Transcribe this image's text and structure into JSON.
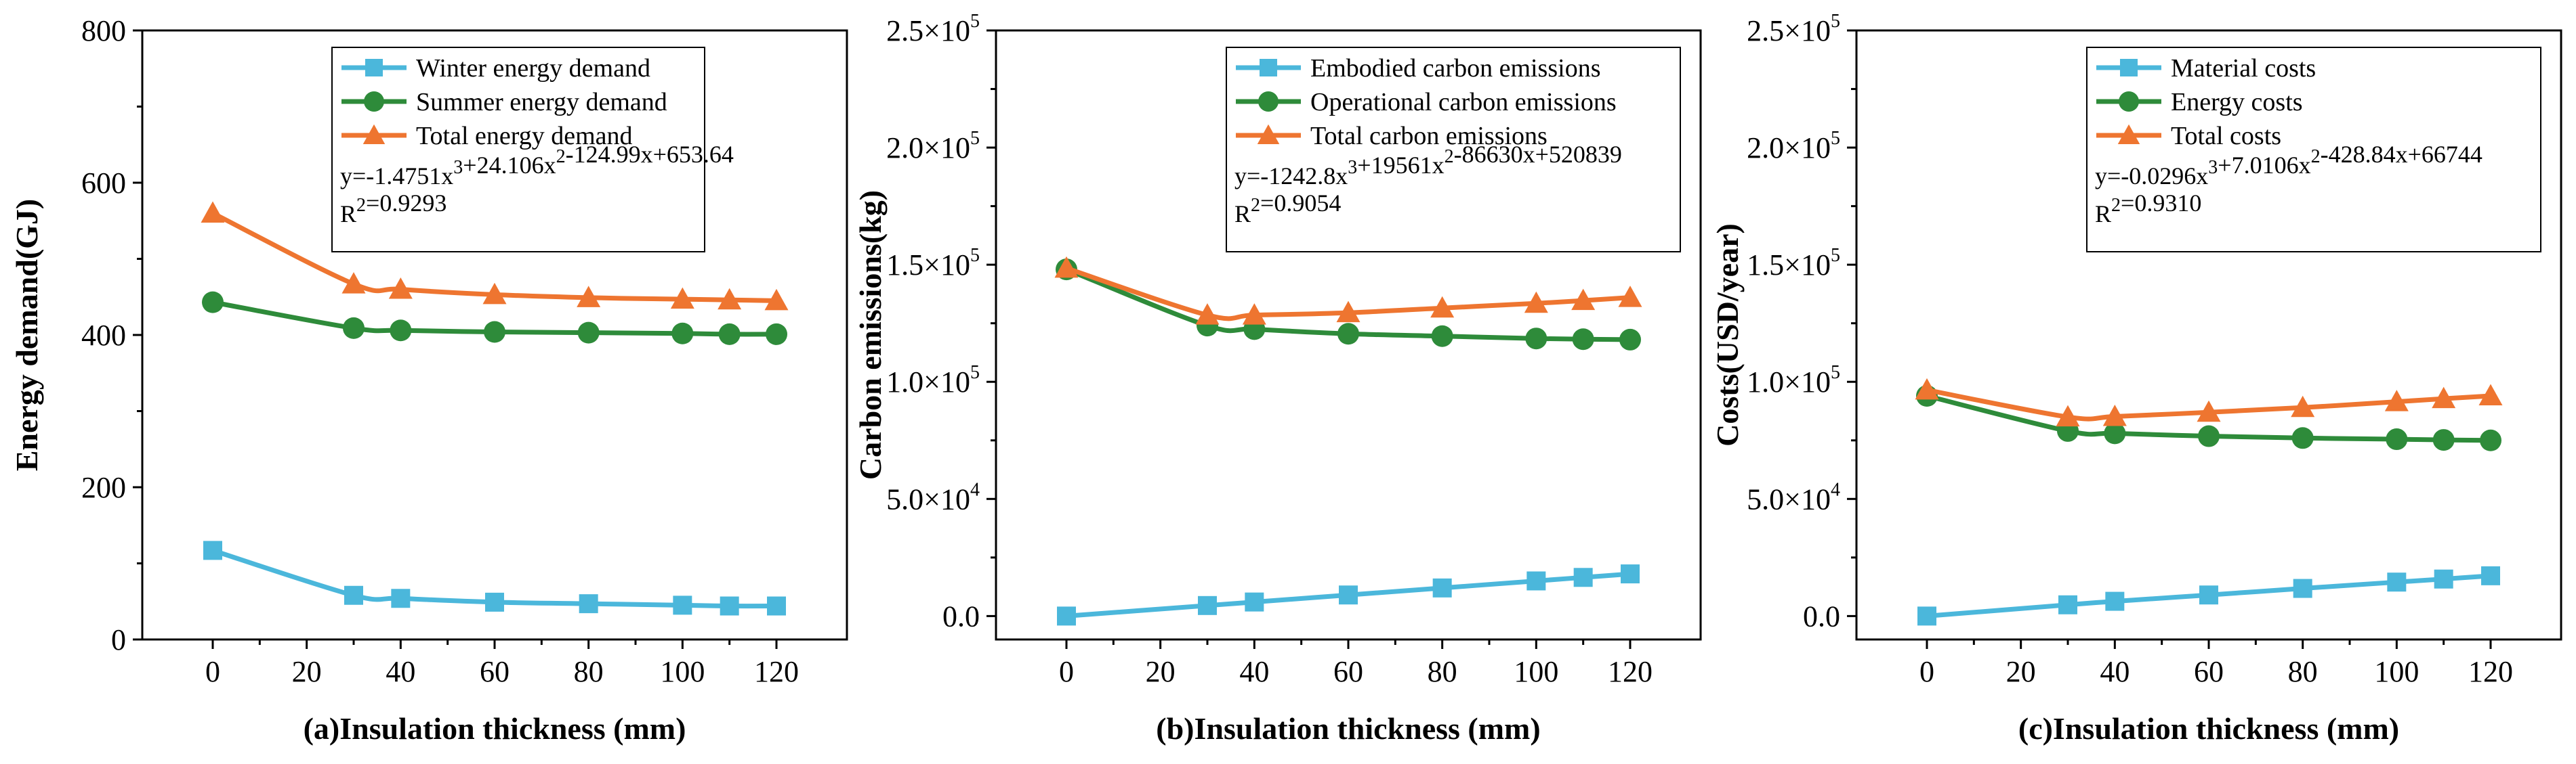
{
  "chart_data": [
    {
      "type": "line",
      "xlabel": "(a)Insulation thickness (mm)",
      "ylabel": "Energy demand(GJ)",
      "x": [
        0,
        30,
        40,
        60,
        80,
        100,
        110,
        120
      ],
      "xlim": [
        -15,
        135
      ],
      "ylim": [
        0,
        800
      ],
      "xticks": [
        0,
        20,
        40,
        60,
        80,
        100,
        120
      ],
      "yticks": [
        0,
        200,
        400,
        600,
        800
      ],
      "ytick_format": "plain",
      "legend_position": "top-right",
      "series": [
        {
          "name": "Winter energy demand",
          "values": [
            117,
            58,
            54,
            49,
            47,
            45,
            44,
            44
          ],
          "color": "#4BB7DB",
          "marker": "square"
        },
        {
          "name": "Summer energy demand",
          "values": [
            443,
            409,
            406,
            404,
            403,
            402,
            401,
            401
          ],
          "color": "#2E8B3A",
          "marker": "circle"
        },
        {
          "name": "Total energy demand",
          "values": [
            560,
            467,
            460,
            453,
            449,
            447,
            446,
            445
          ],
          "color": "#EE7530",
          "marker": "triangle"
        }
      ],
      "equation": "y=-1.4751x³+24.106x²-124.99x+653.64",
      "r2": "R²=0.9293"
    },
    {
      "type": "line",
      "xlabel": "(b)Insulation thickness (mm)",
      "ylabel": "Carbon emissions(kg)",
      "x": [
        0,
        30,
        40,
        60,
        80,
        100,
        110,
        120
      ],
      "xlim": [
        -15,
        135
      ],
      "ylim": [
        -10000,
        250000
      ],
      "xticks": [
        0,
        20,
        40,
        60,
        80,
        100,
        120
      ],
      "yticks": [
        0,
        50000,
        100000,
        150000,
        200000,
        250000
      ],
      "ytick_labels": [
        "0.0",
        "5.0×10^4",
        "1.0×10^5",
        "1.5×10^5",
        "2.0×10^5",
        "2.5×10^5"
      ],
      "legend_position": "top-right",
      "series": [
        {
          "name": "Embodied carbon emissions",
          "values": [
            0,
            4500,
            6000,
            9000,
            12000,
            15000,
            16500,
            18000
          ],
          "color": "#4BB7DB",
          "marker": "square"
        },
        {
          "name": "Operational carbon emissions",
          "values": [
            148000,
            124000,
            122500,
            120500,
            119500,
            118500,
            118200,
            118000
          ],
          "color": "#2E8B3A",
          "marker": "circle"
        },
        {
          "name": "Total carbon emissions",
          "values": [
            148500,
            128500,
            128500,
            129500,
            131500,
            133500,
            134700,
            136000
          ],
          "color": "#EE7530",
          "marker": "triangle"
        }
      ],
      "equation": "y=-1242.8x³+19561x²-86630x+520839",
      "r2": "R²=0.9054"
    },
    {
      "type": "line",
      "xlabel": "(c)Insulation thickness (mm)",
      "ylabel": "Costs(USD/year)",
      "x": [
        0,
        30,
        40,
        60,
        80,
        100,
        110,
        120
      ],
      "xlim": [
        -15,
        135
      ],
      "ylim": [
        -10000,
        250000
      ],
      "xticks": [
        0,
        20,
        40,
        60,
        80,
        100,
        120
      ],
      "yticks": [
        0,
        50000,
        100000,
        150000,
        200000,
        250000
      ],
      "ytick_labels": [
        "0.0",
        "5.0×10^4",
        "1.0×10^5",
        "1.5×10^5",
        "2.0×10^5",
        "2.5×10^5"
      ],
      "legend_position": "top-right",
      "series": [
        {
          "name": "Material costs",
          "values": [
            0,
            4800,
            6300,
            9000,
            11800,
            14500,
            15800,
            17200
          ],
          "color": "#4BB7DB",
          "marker": "square"
        },
        {
          "name": "Energy costs",
          "values": [
            94000,
            79000,
            78000,
            76800,
            76000,
            75500,
            75200,
            75000
          ],
          "color": "#2E8B3A",
          "marker": "circle"
        },
        {
          "name": "Total costs",
          "values": [
            96500,
            85000,
            85200,
            87000,
            89000,
            91500,
            92800,
            94000
          ],
          "color": "#EE7530",
          "marker": "triangle"
        }
      ],
      "equation": "y=-0.0296x³+7.0106x²-428.84x+66744",
      "r2": "R²=0.9310"
    }
  ]
}
